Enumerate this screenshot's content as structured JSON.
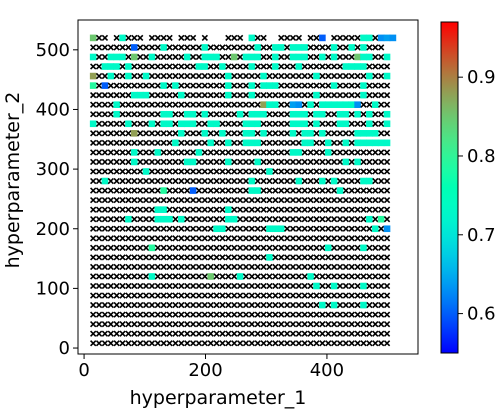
{
  "chart_data": {
    "type": "scatter",
    "xlabel": "hyperparameter_1",
    "ylabel": "hyperparameter_2",
    "xlim": [
      -10,
      550
    ],
    "ylim": [
      -10,
      550
    ],
    "x_ticks": [
      0,
      200,
      400
    ],
    "y_ticks": [
      0,
      100,
      200,
      300,
      400,
      500
    ],
    "x_tick_labels": [
      "0",
      "200",
      "400"
    ],
    "y_tick_labels": [
      "0",
      "100",
      "200",
      "300",
      "400",
      "500"
    ],
    "grid": 16,
    "colorbar": {
      "colormap": "rainbow",
      "min": 0.55,
      "max": 0.97,
      "ticks": [
        0.6,
        0.7,
        0.8,
        0.9
      ],
      "tick_labels": [
        "0.6",
        "0.7",
        "0.8",
        "0.9"
      ]
    },
    "marker_legend": {
      "failed_marker": "x",
      "failed_color": "#000000"
    },
    "pattern_rows_top_to_bottom": [
      "Rxx.xAxxx.xxxx.xxx.x...xxx.Axx..xxxx.xxD.xxxxxAAxBNB",
      "xxxxxxxDxxxxAxxxxxxAxxxxxxxxAxxAAxAAAxxxxAxxAxAxxx.",
      "AxxAAAxRxxAxxxxxAxxAAAxxRxAAAxxAxxAAAxxAxAxxxRAAxxA",
      "xxAAAxAxxxxxxxxxxxAAxxAxxxxAxxxAxxxAxxxxxxxAAAAxxxx",
      "OxxAxxAxxAxxxxxxxxxxxxxAxxxxxAxxxxxxxxAxxxxxxxxAxxA",
      "LxDxxxxxxxxxAxAxxxxxxxxAxxxAxAAAxxxxxxxxxAxxxxAxxxx",
      "xxxxxxxAAAxxxxxAxxxxxxxAxxxAxxxxxxxxxxAxxxxxxxAxxxx",
      "xxxxAxxxxxxxxxxxxxxxxxxxxxxxxOAAxxNBxAxAAAAAABxxAxx",
      "xxxxAxxxxxxxAAxxAAxAxxxxxAxAAAxxxxAAAxAAxxAAxAxAxxA",
      "AxxxxxAxxxAxAAxAAAxxAAxxxxAAAxxxxxAAAxAxxxAAxxxAxxA",
      "xxxxxxxOxxxxxxxAxxxAxxAxxxAAxAxxxxAxAAxAxxxxxAAAAxx",
      "xxxxxxxxxxxxxxAxxxxxAxxAxxAAAxxxxxxxAAxxAxxAxAAAAAA",
      "xxxxxxxAxxxAxxxxxxAxxxxxxxxxxxxxxxAAxxxxAxxxxxxxxxx",
      "xxxxxxxAxxxxxxxxAAxxxxxAxxxxAxxxxxxxxxxxxxxAxAxxxxx",
      "xxxxxxxxxAxxxxxxxxxxxxxxxxxxxxAxxxxxxxxxxxxxxxxxxxx",
      "xxAxxxxxxxxxxxxxxxxxxxxxxxxAxxxxxxxAxxxAxAxxxxAAxxx",
      "xxxxxxxxxxxxLxxxxDxxxxxxxxxAAxxxxxxxxxxxxxAxxxxxxxx",
      "xxxxxxxxxxxxxxxxxxxxxxxxxxxxxxxxxxxxxxxxxxxxxxxxxxx",
      "xxxxxxxxxxxAAxxxxxxxxxxAxxxxxxxxxxxxxxxxxxxxxxxxxxx",
      "xxxxxxAxxxxAAAxAxxxxxxxAAxxxxxxxxxxxxxxxxxxxxxxAxLx",
      "xxxxxxxxxxxxxxxxxxxxxAAxxxxxxxAAAxxxxxxxxxxxxxxxAxB",
      "xxxxxxxxxxxxxxxxxxxxxxxxxxxxxxxxxxxxxxxxxxxxxxxxxxx",
      "xxxxxxxxxxLxxxxxxxxxxxxxxxxxxxxxxxxxxxxxAxxxxxAxxxx",
      "xxxxxxxxxxxxxxxxxxxxxxxxxxxxxxAxxxxxxxxxxxxxxxxxxxx",
      "xxxxxxxxxxxxxxxxxxxxxxxxxxxxxxxxxxxxxxxxxxxxxxxxxxx",
      "xxxxxxxxxxAxxxxxxxxxRxxxxAxxxxxxxxxxxAxxxxxxxxxxxxx",
      "xxxxxxxxxxxxxxxxxxxxxxxxxxxxxxxxxxxxxxAxxAxxxxAxxxx",
      "xxxxxxxxxxxxxxxxxxxxxxxxxxxxxxxxxxxxxxxxxxxxxxxxxxx",
      "xxxxxxxxxxxxxxxxxxxxxxxxxxxxxxxxxxxxxxxAxAxxxxAxxxx",
      "xxxxxxxxxxxxxxxxxxxxxxxxxxxxxxxxxxxxxxxxxxxxxxxxxxx",
      "xxxxxxxxxxxxxxxxxxxxxxxxxxxxxxxxxxxxxxxxxxxxxxxxxxx",
      "xxxxxxxxxxxxxxxxxxxxxxxxxxxxxxxxxxxxxxxxxxxxxxxxxxx",
      "xxxxxxxxxxxxxxxxxxxxxxxxxxxxxxxxxxxxxxxxxxxxxxxxxxx"
    ],
    "pattern_legend": {
      "x": "failed",
      ".": "empty",
      "A": 0.73,
      "R": 0.85,
      "O": 0.88,
      "L": 0.79,
      "D": 0.6,
      "B": 0.63,
      "N": 0.64
    }
  }
}
